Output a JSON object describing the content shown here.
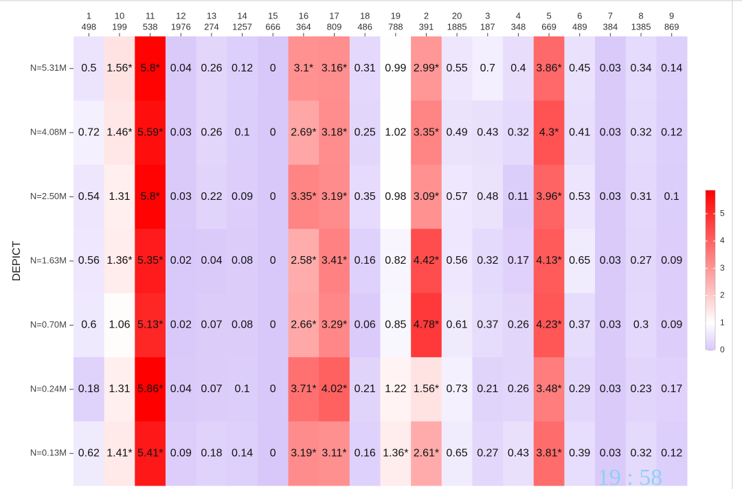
{
  "chart_data": {
    "type": "heatmap",
    "y_axis_label": "DEPICT",
    "x_categories": [
      "1",
      "10",
      "11",
      "12",
      "13",
      "14",
      "15",
      "16",
      "17",
      "18",
      "19",
      "2",
      "20",
      "3",
      "4",
      "5",
      "6",
      "7",
      "8",
      "9"
    ],
    "x_counts": [
      498,
      199,
      538,
      1976,
      274,
      1257,
      666,
      364,
      809,
      486,
      788,
      391,
      1885,
      187,
      348,
      669,
      489,
      384,
      1385,
      869
    ],
    "y_categories": [
      "N=5.31M",
      "N=4.08M",
      "N=2.50M",
      "N=1.63M",
      "N=0.70M",
      "N=0.24M",
      "N=0.13M"
    ],
    "values": [
      [
        0.5,
        1.56,
        5.8,
        0.04,
        0.26,
        0.12,
        0,
        3.1,
        3.16,
        0.31,
        0.99,
        2.99,
        0.55,
        0.7,
        0.4,
        3.86,
        0.45,
        0.03,
        0.34,
        0.14
      ],
      [
        0.72,
        1.46,
        5.59,
        0.03,
        0.26,
        0.1,
        0,
        2.69,
        3.18,
        0.25,
        1.02,
        3.35,
        0.49,
        0.43,
        0.32,
        4.3,
        0.41,
        0.03,
        0.32,
        0.12
      ],
      [
        0.54,
        1.31,
        5.8,
        0.03,
        0.22,
        0.09,
        0,
        3.35,
        3.19,
        0.35,
        0.98,
        3.09,
        0.57,
        0.48,
        0.11,
        3.96,
        0.53,
        0.03,
        0.31,
        0.1
      ],
      [
        0.56,
        1.36,
        5.35,
        0.02,
        0.04,
        0.08,
        0,
        2.58,
        3.41,
        0.16,
        0.82,
        4.42,
        0.56,
        0.32,
        0.17,
        4.13,
        0.65,
        0.03,
        0.27,
        0.09
      ],
      [
        0.6,
        1.06,
        5.13,
        0.02,
        0.07,
        0.08,
        0,
        2.66,
        3.29,
        0.06,
        0.85,
        4.78,
        0.61,
        0.37,
        0.26,
        4.23,
        0.37,
        0.03,
        0.3,
        0.09
      ],
      [
        0.18,
        1.31,
        5.86,
        0.04,
        0.07,
        0.1,
        0,
        3.71,
        4.02,
        0.21,
        1.22,
        1.56,
        0.73,
        0.21,
        0.26,
        3.48,
        0.29,
        0.03,
        0.23,
        0.17
      ],
      [
        0.62,
        1.41,
        5.41,
        0.09,
        0.18,
        0.14,
        0,
        3.19,
        3.11,
        0.16,
        1.36,
        2.61,
        0.65,
        0.27,
        0.43,
        3.81,
        0.39,
        0.03,
        0.32,
        0.12
      ]
    ],
    "value_labels": [
      [
        "0.5",
        "1.56*",
        "5.8*",
        "0.04",
        "0.26",
        "0.12",
        "0",
        "3.1*",
        "3.16*",
        "0.31",
        "0.99",
        "2.99*",
        "0.55",
        "0.7",
        "0.4",
        "3.86*",
        "0.45",
        "0.03",
        "0.34",
        "0.14"
      ],
      [
        "0.72",
        "1.46*",
        "5.59*",
        "0.03",
        "0.26",
        "0.1",
        "0",
        "2.69*",
        "3.18*",
        "0.25",
        "1.02",
        "3.35*",
        "0.49",
        "0.43",
        "0.32",
        "4.3*",
        "0.41",
        "0.03",
        "0.32",
        "0.12"
      ],
      [
        "0.54",
        "1.31",
        "5.8*",
        "0.03",
        "0.22",
        "0.09",
        "0",
        "3.35*",
        "3.19*",
        "0.35",
        "0.98",
        "3.09*",
        "0.57",
        "0.48",
        "0.11",
        "3.96*",
        "0.53",
        "0.03",
        "0.31",
        "0.1"
      ],
      [
        "0.56",
        "1.36*",
        "5.35*",
        "0.02",
        "0.04",
        "0.08",
        "0",
        "2.58*",
        "3.41*",
        "0.16",
        "0.82",
        "4.42*",
        "0.56",
        "0.32",
        "0.17",
        "4.13*",
        "0.65",
        "0.03",
        "0.27",
        "0.09"
      ],
      [
        "0.6",
        "1.06",
        "5.13*",
        "0.02",
        "0.07",
        "0.08",
        "0",
        "2.66*",
        "3.29*",
        "0.06",
        "0.85",
        "4.78*",
        "0.61",
        "0.37",
        "0.26",
        "4.23*",
        "0.37",
        "0.03",
        "0.3",
        "0.09"
      ],
      [
        "0.18",
        "1.31",
        "5.86*",
        "0.04",
        "0.07",
        "0.1",
        "0",
        "3.71*",
        "4.02*",
        "0.21",
        "1.22",
        "1.56*",
        "0.73",
        "0.21",
        "0.26",
        "3.48*",
        "0.29",
        "0.03",
        "0.23",
        "0.17"
      ],
      [
        "0.62",
        "1.41*",
        "5.41*",
        "0.09",
        "0.18",
        "0.14",
        "0",
        "3.19*",
        "3.11*",
        "0.16",
        "1.36*",
        "2.61*",
        "0.65",
        "0.27",
        "0.43",
        "3.81*",
        "0.39",
        "0.03",
        "0.32",
        "0.12"
      ]
    ],
    "color_stops": [
      [
        0,
        "#d8c8fa"
      ],
      [
        1,
        "#ffffff"
      ],
      [
        5.86,
        "#ff0000"
      ]
    ],
    "colorbar_lim": [
      0,
      5.86
    ],
    "colorbar_ticks": [
      0,
      1,
      2,
      3,
      4,
      5
    ],
    "overlay_text": "19 : 58"
  }
}
